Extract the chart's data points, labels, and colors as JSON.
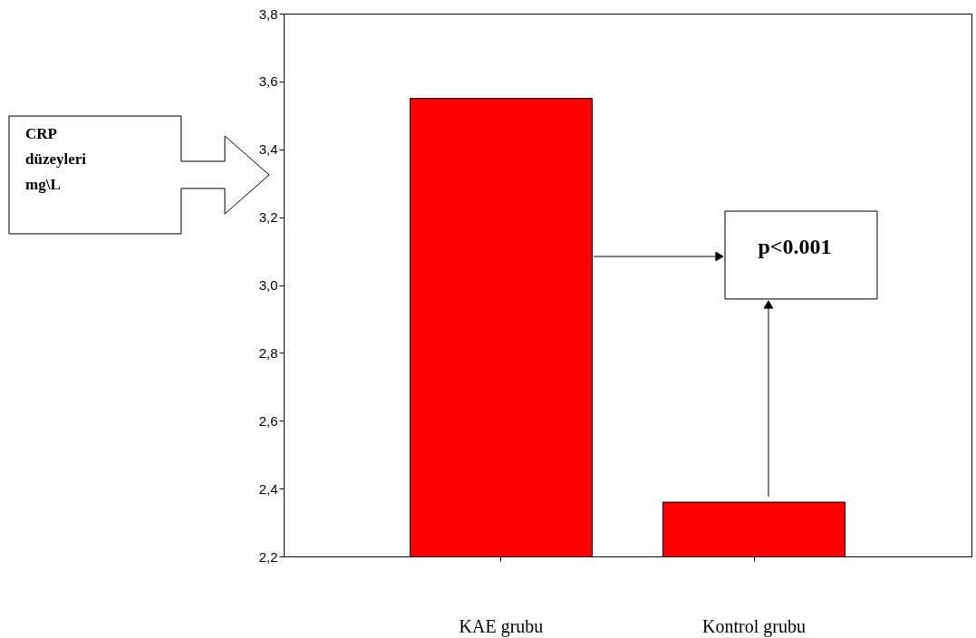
{
  "chart_data": {
    "type": "bar",
    "categories": [
      "KAE  grubu",
      "Kontrol  grubu"
    ],
    "values": [
      3.55,
      2.36
    ],
    "color": "#ff0000",
    "ylim": [
      2.2,
      3.8
    ],
    "yticks": [
      {
        "value": 2.2,
        "label": "2,2"
      },
      {
        "value": 2.4,
        "label": "2,4"
      },
      {
        "value": 2.6,
        "label": "2,6"
      },
      {
        "value": 2.8,
        "label": "2,8"
      },
      {
        "value": 3.0,
        "label": "3,0"
      },
      {
        "value": 3.2,
        "label": "3,2"
      },
      {
        "value": 3.4,
        "label": "3,4"
      },
      {
        "value": 3.6,
        "label": "3,6"
      },
      {
        "value": 3.8,
        "label": "3,8"
      }
    ],
    "grid": false,
    "annotations": [
      "CRP düzeyleri mg\\L",
      "p<0.001"
    ]
  }
}
